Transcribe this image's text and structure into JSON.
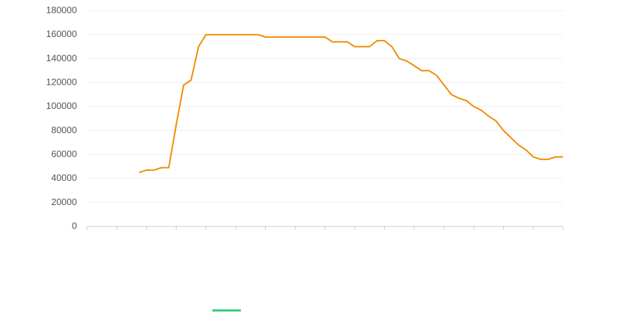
{
  "chart_data": {
    "type": "line",
    "categories": [
      null,
      null,
      null,
      null,
      null,
      null,
      null,
      null,
      null,
      null,
      null,
      null,
      null,
      null,
      null,
      null,
      null,
      null,
      null,
      null,
      null,
      null,
      null,
      null,
      null,
      null,
      null,
      null,
      null,
      null,
      null,
      null,
      null,
      null,
      null,
      null,
      null,
      null,
      null,
      null,
      null,
      null,
      null,
      null,
      null,
      null,
      null,
      null,
      null,
      null,
      null,
      null,
      null,
      null,
      null,
      null,
      null,
      null,
      null,
      null,
      null,
      null,
      null,
      null,
      null
    ],
    "series": [
      {
        "color": "#f08c00",
        "legend_color": "#2ecc71",
        "values": [
          null,
          null,
          null,
          null,
          null,
          null,
          null,
          45000,
          47000,
          47000,
          49000,
          49000,
          85000,
          118000,
          122000,
          150000,
          160000,
          160000,
          160000,
          160000,
          160000,
          160000,
          160000,
          160000,
          158000,
          158000,
          158000,
          158000,
          158000,
          158000,
          158000,
          158000,
          158000,
          154000,
          154000,
          154000,
          150000,
          150000,
          150000,
          155000,
          155000,
          150000,
          140000,
          138000,
          134000,
          130000,
          130000,
          126000,
          118000,
          110000,
          107000,
          105000,
          100000,
          97000,
          92000,
          88000,
          80000,
          74000,
          68000,
          64000,
          58000,
          56000,
          56000,
          58000,
          58000
        ]
      }
    ],
    "ylim": [
      0,
      180000
    ],
    "yticks": [
      0,
      20000,
      40000,
      60000,
      80000,
      100000,
      120000,
      140000,
      160000,
      180000
    ],
    "grid": true,
    "legend": "bottom"
  }
}
